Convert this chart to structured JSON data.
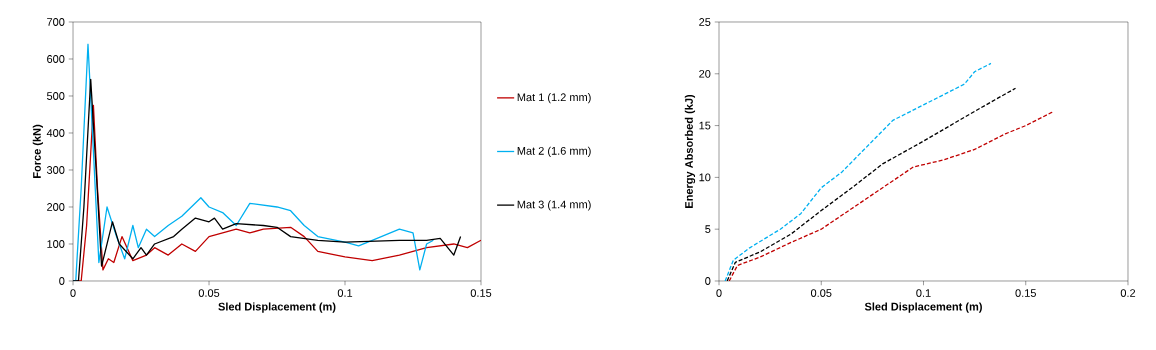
{
  "chart_data": [
    {
      "type": "line",
      "xlabel": "Sled Displacement (m)",
      "ylabel": "Force (kN)",
      "xlim": [
        0,
        0.15
      ],
      "ylim": [
        0,
        700
      ],
      "xticks": [
        0,
        0.05,
        0.1,
        0.15
      ],
      "yticks": [
        0,
        100,
        200,
        300,
        400,
        500,
        600,
        700
      ],
      "legend": "right",
      "line_style": "solid",
      "series": [
        {
          "name": "Mat 1 (1.2 mm)",
          "color": "#c00000",
          "x": [
            0,
            0.003,
            0.005,
            0.0075,
            0.009,
            0.011,
            0.013,
            0.015,
            0.018,
            0.022,
            0.027,
            0.03,
            0.035,
            0.04,
            0.045,
            0.05,
            0.06,
            0.065,
            0.07,
            0.08,
            0.085,
            0.09,
            0.1,
            0.11,
            0.12,
            0.13,
            0.14,
            0.145,
            0.15
          ],
          "values": [
            0,
            0,
            150,
            475,
            250,
            30,
            60,
            50,
            120,
            55,
            70,
            90,
            70,
            100,
            80,
            120,
            140,
            130,
            140,
            145,
            120,
            80,
            65,
            55,
            70,
            90,
            100,
            90,
            110
          ]
        },
        {
          "name": "Mat 2 (1.6 mm)",
          "color": "#00b0f0",
          "x": [
            0,
            0.001,
            0.003,
            0.0055,
            0.0075,
            0.0095,
            0.0125,
            0.016,
            0.019,
            0.022,
            0.024,
            0.027,
            0.03,
            0.035,
            0.04,
            0.047,
            0.05,
            0.055,
            0.06,
            0.065,
            0.075,
            0.08,
            0.085,
            0.09,
            0.1,
            0.105,
            0.11,
            0.12,
            0.125,
            0.1275,
            0.13,
            0.1325
          ],
          "values": [
            0,
            0,
            250,
            640,
            350,
            50,
            200,
            120,
            60,
            150,
            90,
            140,
            120,
            150,
            175,
            225,
            200,
            185,
            150,
            210,
            200,
            190,
            150,
            120,
            105,
            95,
            110,
            140,
            130,
            30,
            100,
            110
          ]
        },
        {
          "name": "Mat 3 (1.4 mm)",
          "color": "#000000",
          "x": [
            0,
            0.002,
            0.004,
            0.0065,
            0.0085,
            0.0105,
            0.0145,
            0.017,
            0.022,
            0.025,
            0.027,
            0.03,
            0.037,
            0.04,
            0.045,
            0.05,
            0.052,
            0.055,
            0.06,
            0.07,
            0.075,
            0.08,
            0.09,
            0.1,
            0.12,
            0.13,
            0.135,
            0.14,
            0.1425
          ],
          "values": [
            0,
            0,
            200,
            545,
            300,
            40,
            160,
            100,
            60,
            90,
            70,
            100,
            120,
            140,
            170,
            160,
            170,
            140,
            155,
            150,
            145,
            120,
            110,
            105,
            110,
            110,
            115,
            70,
            120
          ]
        }
      ]
    },
    {
      "type": "line",
      "xlabel": "Sled Displacement (m)",
      "ylabel": "Energy Absorbed (kJ)",
      "xlim": [
        0,
        0.2
      ],
      "ylim": [
        0,
        25
      ],
      "xticks": [
        0,
        0.05,
        0.1,
        0.15,
        0.2
      ],
      "yticks": [
        0,
        5,
        10,
        15,
        20,
        25
      ],
      "line_style": "dashed",
      "series": [
        {
          "color": "#c00000",
          "x": [
            0.005,
            0.009,
            0.02,
            0.035,
            0.05,
            0.065,
            0.08,
            0.095,
            0.11,
            0.125,
            0.14,
            0.15,
            0.163
          ],
          "values": [
            0,
            1.5,
            2.3,
            3.7,
            5,
            7,
            9,
            11,
            11.7,
            12.7,
            14.2,
            15,
            16.3
          ]
        },
        {
          "color": "#00b0f0",
          "x": [
            0.003,
            0.007,
            0.015,
            0.03,
            0.04,
            0.05,
            0.06,
            0.07,
            0.085,
            0.1,
            0.12,
            0.125,
            0.133
          ],
          "values": [
            0,
            2,
            3.2,
            5,
            6.5,
            9,
            10.5,
            12.5,
            15.5,
            17,
            19,
            20.2,
            21
          ]
        },
        {
          "color": "#000000",
          "x": [
            0.004,
            0.008,
            0.02,
            0.035,
            0.05,
            0.065,
            0.08,
            0.1,
            0.12,
            0.135,
            0.145
          ],
          "values": [
            0,
            1.8,
            2.8,
            4.5,
            6.8,
            9,
            11.3,
            13.5,
            15.8,
            17.5,
            18.6
          ]
        }
      ]
    }
  ]
}
